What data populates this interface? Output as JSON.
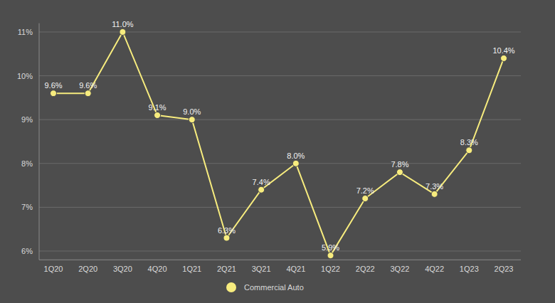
{
  "chart_data": {
    "type": "line",
    "categories": [
      "1Q20",
      "2Q20",
      "3Q20",
      "4Q20",
      "1Q21",
      "2Q21",
      "3Q21",
      "4Q21",
      "1Q22",
      "2Q22",
      "3Q22",
      "4Q22",
      "1Q23",
      "2Q23"
    ],
    "series": [
      {
        "name": "Commercial Auto",
        "color": "#f7ec7e",
        "marker": "circle",
        "values": [
          9.6,
          9.6,
          11.0,
          9.1,
          9.0,
          6.3,
          7.4,
          8.0,
          5.9,
          7.2,
          7.8,
          7.3,
          8.3,
          10.4
        ],
        "value_labels": [
          "9.6%",
          "9.6%",
          "11.0%",
          "9.1%",
          "9.0%",
          "6.3%",
          "7.4%",
          "8.0%",
          "5.9%",
          "7.2%",
          "7.8%",
          "7.3%",
          "8.3%",
          "10.4%"
        ]
      }
    ],
    "ylim": [
      5.8,
      11.2
    ],
    "yticks": [
      {
        "value": 6,
        "label": "6%"
      },
      {
        "value": 7,
        "label": "7%"
      },
      {
        "value": 8,
        "label": "8%"
      },
      {
        "value": 9,
        "label": "9%"
      },
      {
        "value": 10,
        "label": "10%"
      },
      {
        "value": 11,
        "label": "11%"
      }
    ],
    "grid": true,
    "data_labels": true,
    "legend": "bottom"
  }
}
